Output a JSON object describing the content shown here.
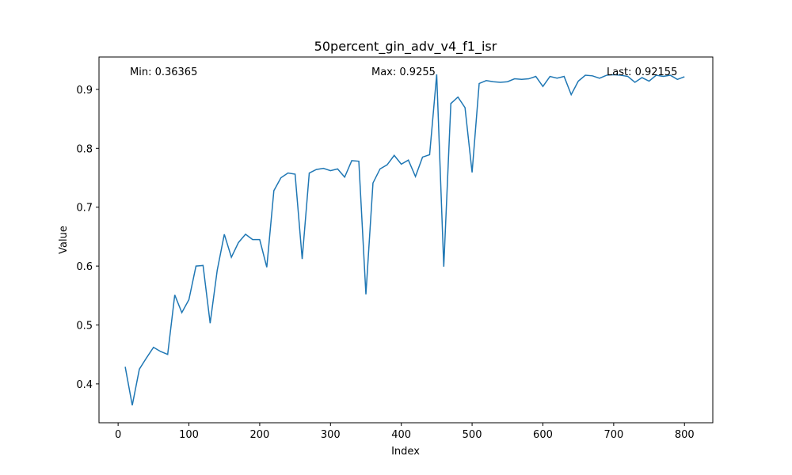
{
  "chart_data": {
    "type": "line",
    "title": "50percent_gin_adv_v4_f1_isr",
    "xlabel": "Index",
    "ylabel": "Value",
    "xlim": [
      -27,
      840
    ],
    "ylim": [
      0.334,
      0.955
    ],
    "xticks": [
      0,
      100,
      200,
      300,
      400,
      500,
      600,
      700,
      800
    ],
    "yticks": [
      0.4,
      0.5,
      0.6,
      0.7,
      0.8,
      0.9
    ],
    "grid": false,
    "line_color": "#1f77b4",
    "annotations": {
      "min": "Min: 0.36365",
      "max": "Max: 0.9255",
      "last": "Last: 0.92155"
    },
    "series": [
      {
        "x": [
          10,
          20,
          30,
          40,
          50,
          60,
          70,
          80,
          90,
          100,
          110,
          120,
          130,
          140,
          150,
          160,
          170,
          180,
          190,
          200,
          210,
          220,
          230,
          240,
          250,
          260,
          270,
          280,
          290,
          300,
          310,
          320,
          330,
          340,
          350,
          360,
          370,
          380,
          390,
          400,
          410,
          420,
          430,
          440,
          450,
          460,
          470,
          480,
          490,
          500,
          510,
          520,
          530,
          540,
          550,
          560,
          570,
          580,
          590,
          600,
          610,
          620,
          630,
          640,
          650,
          660,
          670,
          680,
          690,
          700,
          710,
          720,
          730,
          740,
          750,
          760,
          770,
          780,
          790,
          800
        ],
        "y": [
          0.429,
          0.36365,
          0.425,
          0.444,
          0.462,
          0.455,
          0.45,
          0.551,
          0.521,
          0.543,
          0.6,
          0.601,
          0.503,
          0.593,
          0.654,
          0.615,
          0.64,
          0.654,
          0.645,
          0.645,
          0.598,
          0.728,
          0.75,
          0.758,
          0.756,
          0.612,
          0.758,
          0.764,
          0.766,
          0.762,
          0.765,
          0.751,
          0.779,
          0.778,
          0.552,
          0.741,
          0.765,
          0.772,
          0.788,
          0.773,
          0.78,
          0.752,
          0.785,
          0.789,
          0.9255,
          0.599,
          0.876,
          0.887,
          0.869,
          0.759,
          0.91,
          0.915,
          0.913,
          0.912,
          0.913,
          0.918,
          0.917,
          0.918,
          0.922,
          0.905,
          0.922,
          0.919,
          0.922,
          0.891,
          0.914,
          0.924,
          0.923,
          0.919,
          0.924,
          0.925,
          0.924,
          0.922,
          0.912,
          0.92,
          0.914,
          0.924,
          0.922,
          0.924,
          0.917,
          0.92155
        ]
      }
    ]
  }
}
